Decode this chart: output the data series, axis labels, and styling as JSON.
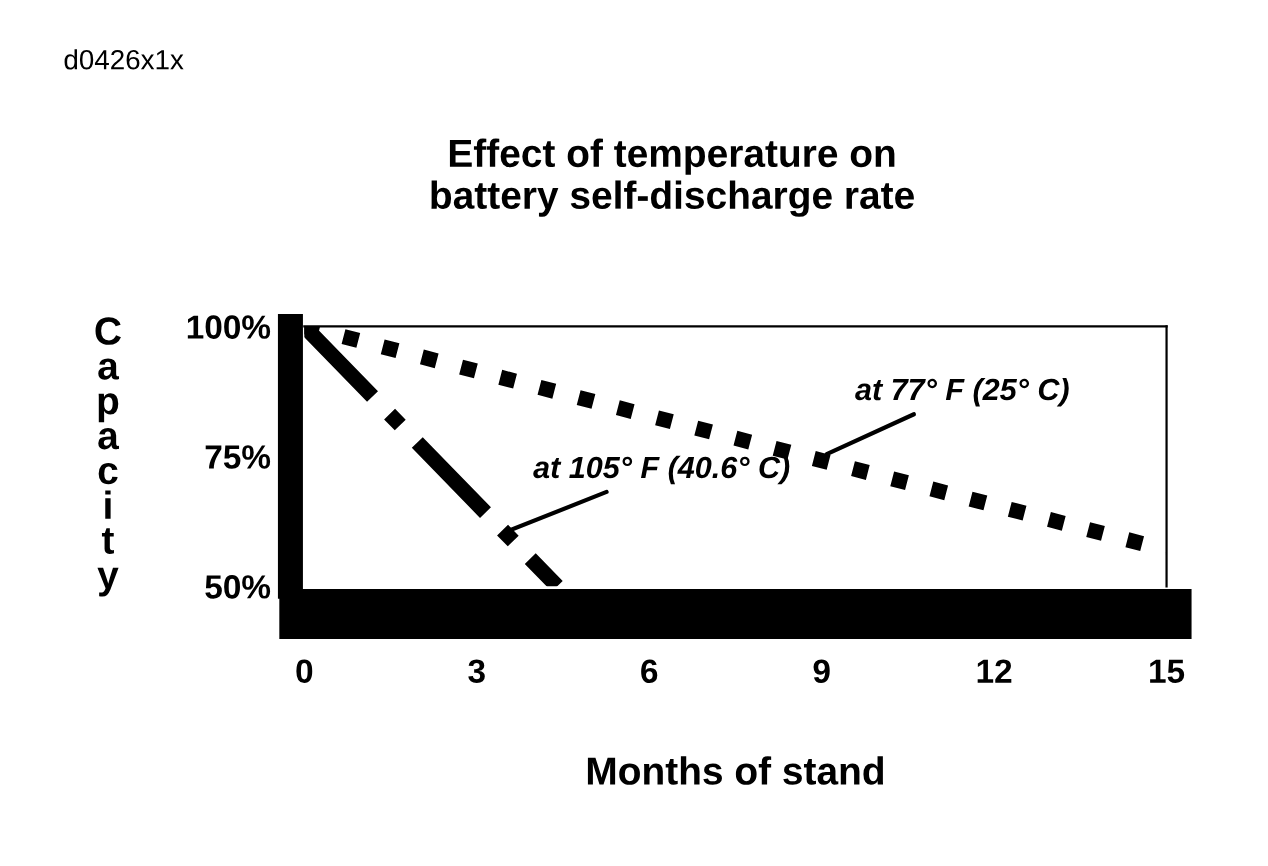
{
  "chart_data": {
    "type": "line",
    "title": "Effect of temperature on\nbattery self-discharge rate",
    "xlabel": "Months of stand",
    "ylabel": "Capacity",
    "series": [
      {
        "color": "#000000",
        "line_style": "dotted",
        "x": [
          0,
          15
        ],
        "values": [
          100,
          57
        ]
      },
      {
        "color": "#000000",
        "line_style": "dashdot",
        "x": [
          0,
          4.4
        ],
        "values": [
          100,
          50
        ]
      }
    ],
    "xlim": [
      0,
      15
    ],
    "ylim": [
      50,
      100
    ],
    "xticks": [
      0,
      3,
      6,
      9,
      12,
      15
    ],
    "yticks": [
      {
        "value": 50,
        "label": "50%"
      },
      {
        "value": 75,
        "label": "75%"
      },
      {
        "value": 100,
        "label": "100%"
      }
    ],
    "grid": false,
    "legend": false,
    "marker": "none",
    "annotations": [
      "d0426x1x",
      {
        "text": "at 77° F (25° C)",
        "x": 9,
        "y": 75
      },
      {
        "text": "at 105° F (40.6° C)",
        "x": 3.4,
        "y": 60
      }
    ]
  }
}
